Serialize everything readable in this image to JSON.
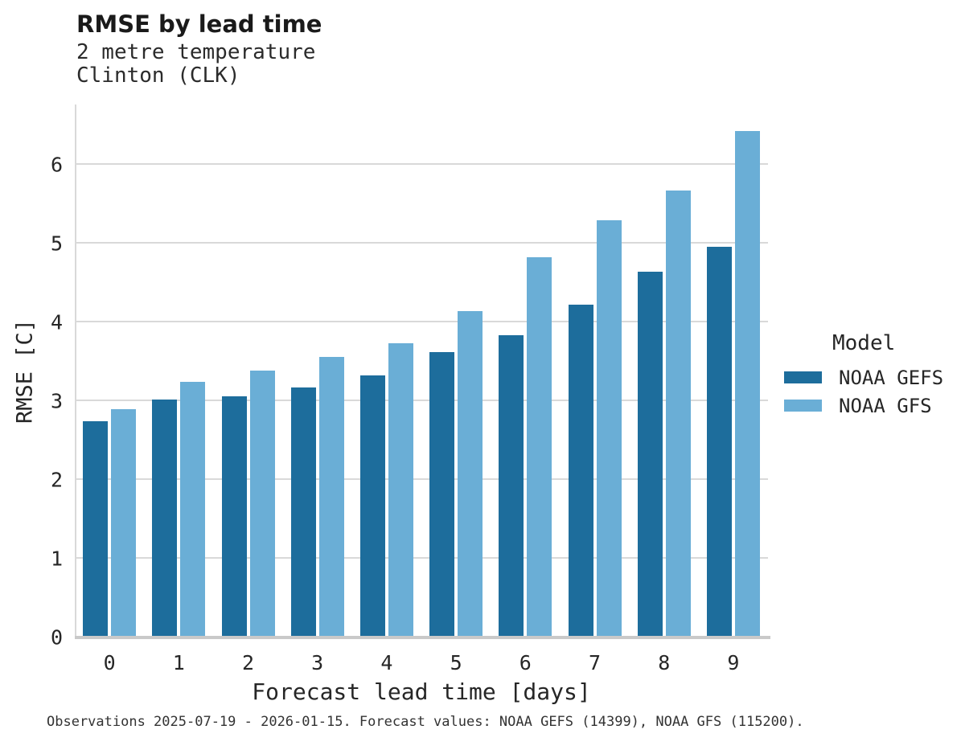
{
  "chart_data": {
    "type": "bar",
    "title": "RMSE by lead time",
    "subtitle": [
      "2 metre temperature",
      "Clinton (CLK)"
    ],
    "categories": [
      "0",
      "1",
      "2",
      "3",
      "4",
      "5",
      "6",
      "7",
      "8",
      "9"
    ],
    "series": [
      {
        "name": "NOAA GEFS",
        "color": "#1d6d9c",
        "values": [
          2.74,
          3.02,
          3.06,
          3.17,
          3.32,
          3.62,
          3.83,
          4.22,
          4.64,
          4.96
        ]
      },
      {
        "name": "NOAA GFS",
        "color": "#6aaed6",
        "values": [
          2.9,
          3.24,
          3.39,
          3.56,
          3.73,
          4.14,
          4.82,
          5.29,
          5.67,
          6.42
        ]
      }
    ],
    "xlabel": "Forecast lead time [days]",
    "ylabel": "RMSE [C]",
    "ylim": [
      0,
      6.76
    ],
    "yticks": [
      0,
      1,
      2,
      3,
      4,
      5,
      6
    ],
    "grid": true,
    "legend_title": "Model",
    "legend_position": "right",
    "caption": "Observations 2025-07-19 - 2026-01-15. Forecast values: NOAA GEFS (14399), NOAA GFS (115200)."
  },
  "colors": {
    "gridline": "#d9d9d9",
    "axis_line": "#c9c9c9",
    "title_text": "#1a1a1a",
    "body_text": "#262626"
  }
}
